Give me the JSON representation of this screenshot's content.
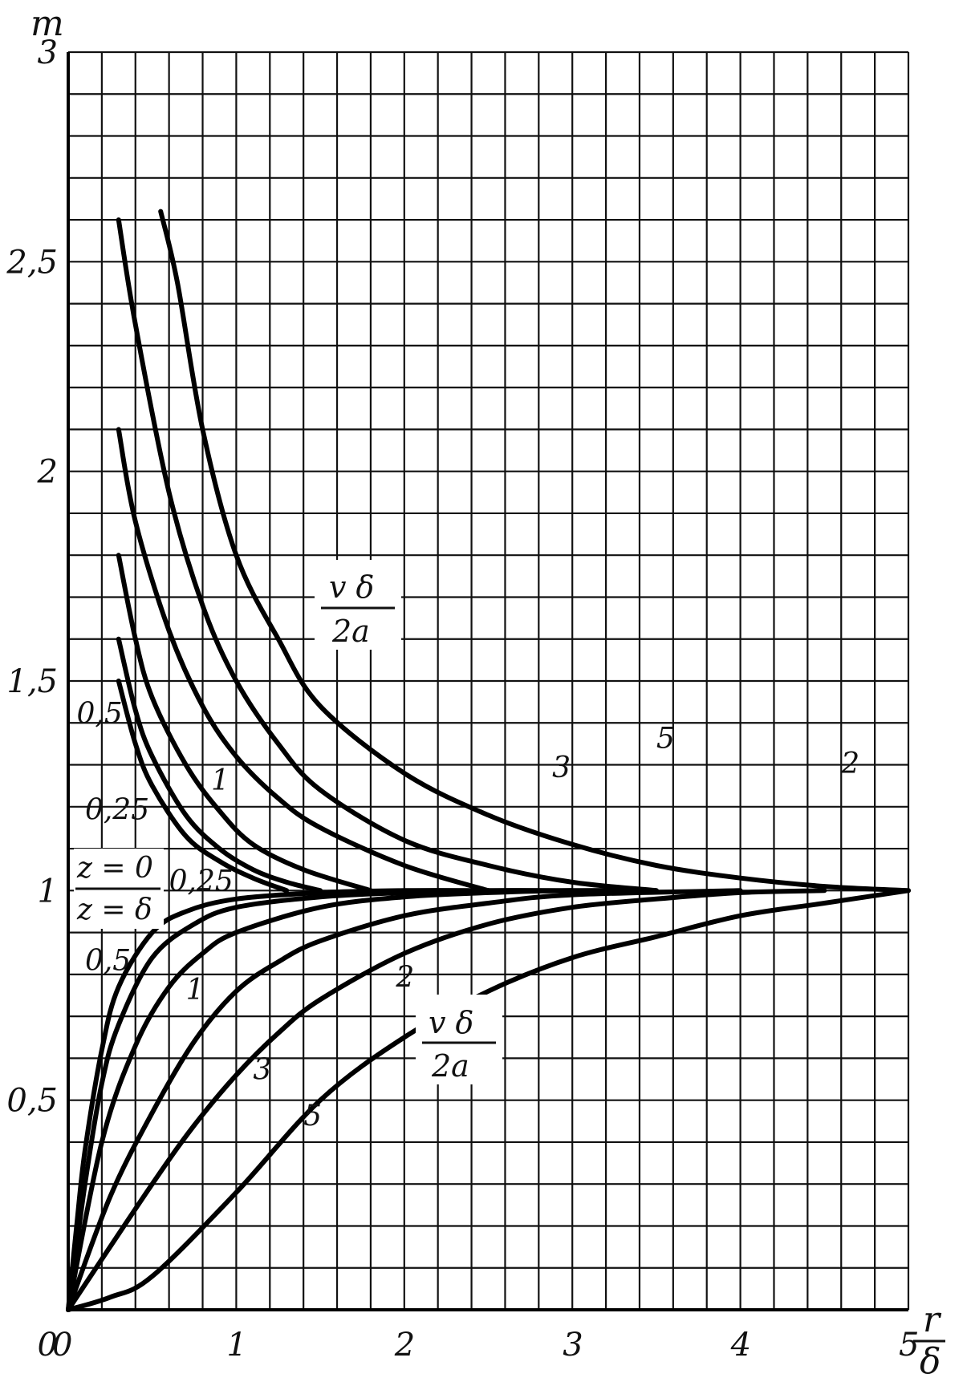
{
  "chart_data": {
    "type": "line",
    "xlabel_num": "r",
    "xlabel_den": "δ",
    "ylabel": "m",
    "xlim": [
      0,
      5
    ],
    "ylim": [
      0,
      3
    ],
    "grid": true,
    "x_ticks": [
      "0",
      "1",
      "2",
      "3",
      "4",
      "5"
    ],
    "x_tick_values": [
      0,
      1,
      2,
      3,
      4,
      5
    ],
    "y_ticks": [
      "0,5",
      "1",
      "1,5",
      "2",
      "2,5",
      "3"
    ],
    "y_tick_values": [
      0.5,
      1,
      1.5,
      2,
      2.5,
      3
    ],
    "group_top": "z = 0",
    "group_bottom": "z = δ",
    "param_num": "v δ",
    "param_den": "2a",
    "series": [
      {
        "name": "5",
        "group": "upper",
        "x": [
          0.55,
          0.65,
          0.8,
          1.0,
          1.25,
          1.5,
          2.0,
          2.5,
          3.0,
          3.5,
          4.0,
          4.5,
          5.0
        ],
        "y": [
          2.62,
          2.45,
          2.1,
          1.8,
          1.6,
          1.44,
          1.28,
          1.18,
          1.11,
          1.06,
          1.03,
          1.01,
          1.0
        ]
      },
      {
        "name": "3",
        "group": "upper",
        "x": [
          0.3,
          0.4,
          0.6,
          0.8,
          1.0,
          1.25,
          1.5,
          2.0,
          2.5,
          3.0,
          3.5
        ],
        "y": [
          2.6,
          2.35,
          1.95,
          1.68,
          1.5,
          1.35,
          1.24,
          1.12,
          1.06,
          1.02,
          1.0
        ]
      },
      {
        "name": "2",
        "group": "upper",
        "x": [
          0.3,
          0.4,
          0.6,
          0.8,
          1.0,
          1.25,
          1.5,
          2.0,
          2.5
        ],
        "y": [
          2.1,
          1.88,
          1.62,
          1.44,
          1.32,
          1.22,
          1.15,
          1.06,
          1.0
        ]
      },
      {
        "name": "1",
        "group": "upper",
        "x": [
          0.3,
          0.4,
          0.5,
          0.7,
          0.9,
          1.1,
          1.4,
          1.8
        ],
        "y": [
          1.8,
          1.6,
          1.46,
          1.3,
          1.19,
          1.11,
          1.05,
          1.0
        ]
      },
      {
        "name": "0,5",
        "group": "upper",
        "x": [
          0.3,
          0.4,
          0.5,
          0.7,
          0.9,
          1.1,
          1.3,
          1.5
        ],
        "y": [
          1.6,
          1.43,
          1.32,
          1.18,
          1.1,
          1.05,
          1.02,
          1.0
        ]
      },
      {
        "name": "0,25",
        "group": "upper",
        "x": [
          0.3,
          0.4,
          0.5,
          0.7,
          0.9,
          1.1,
          1.3
        ],
        "y": [
          1.5,
          1.35,
          1.25,
          1.13,
          1.07,
          1.03,
          1.0
        ]
      },
      {
        "name": "0,25",
        "group": "lower",
        "x": [
          0,
          0.05,
          0.1,
          0.2,
          0.3,
          0.5,
          0.7,
          1.0,
          1.5,
          2.0,
          2.5
        ],
        "y": [
          0,
          0.2,
          0.38,
          0.62,
          0.77,
          0.9,
          0.95,
          0.98,
          0.995,
          1.0,
          1.0
        ]
      },
      {
        "name": "0,5",
        "group": "lower",
        "x": [
          0,
          0.1,
          0.2,
          0.3,
          0.5,
          0.75,
          1.0,
          1.5,
          2.0,
          2.5,
          3.0
        ],
        "y": [
          0,
          0.3,
          0.54,
          0.68,
          0.84,
          0.92,
          0.96,
          0.985,
          0.995,
          1.0,
          1.0
        ]
      },
      {
        "name": "1",
        "group": "lower",
        "x": [
          0,
          0.2,
          0.4,
          0.6,
          0.8,
          1.0,
          1.5,
          2.0,
          2.5,
          3.0,
          3.5
        ],
        "y": [
          0,
          0.4,
          0.63,
          0.77,
          0.85,
          0.9,
          0.96,
          0.985,
          0.995,
          1.0,
          1.0
        ]
      },
      {
        "name": "2",
        "group": "lower",
        "x": [
          0,
          0.25,
          0.5,
          0.75,
          1.0,
          1.25,
          1.5,
          2.0,
          2.5,
          3.0,
          4.0
        ],
        "y": [
          0,
          0.27,
          0.47,
          0.64,
          0.76,
          0.83,
          0.88,
          0.94,
          0.97,
          0.99,
          1.0
        ]
      },
      {
        "name": "3",
        "group": "lower",
        "x": [
          0,
          0.5,
          0.75,
          1.0,
          1.25,
          1.5,
          2.0,
          2.5,
          3.0,
          3.5,
          4.0,
          4.5
        ],
        "y": [
          0,
          0.3,
          0.44,
          0.56,
          0.66,
          0.74,
          0.85,
          0.92,
          0.96,
          0.98,
          0.995,
          1.0
        ]
      },
      {
        "name": "5",
        "group": "lower",
        "x": [
          0,
          0.25,
          0.5,
          1.0,
          1.5,
          2.0,
          2.5,
          3.0,
          3.5,
          4.0,
          4.5,
          5.0
        ],
        "y": [
          0,
          0.03,
          0.08,
          0.28,
          0.5,
          0.65,
          0.76,
          0.84,
          0.89,
          0.94,
          0.97,
          1.0
        ]
      }
    ]
  }
}
